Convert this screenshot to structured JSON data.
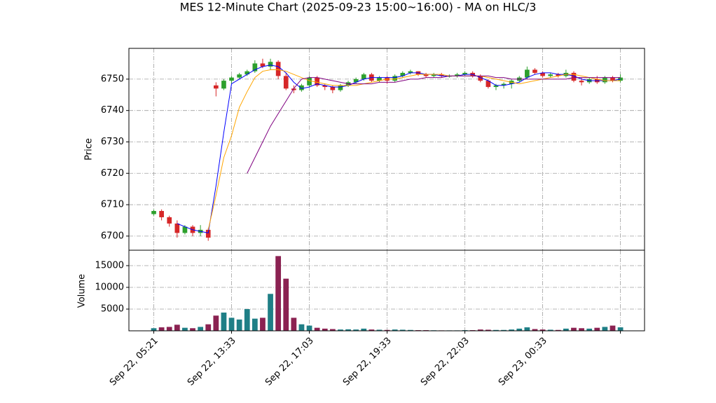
{
  "chart_data": {
    "type": "candlestick",
    "title": "MES 12-Minute Chart (2025-09-23 15:00~16:00) - MA on HLC/3",
    "ylabel": "Price",
    "volume_ylabel": "Volume",
    "open": [
      6707,
      6708,
      6706,
      6704,
      6701,
      6703,
      6701,
      6702,
      6748,
      6747,
      6749.5,
      6750.5,
      6751.5,
      6752.5,
      6755,
      6754,
      6755.5,
      6751,
      6747,
      6746.5,
      6748,
      6750.5,
      6748,
      6747.5,
      6746.5,
      6748,
      6749,
      6750,
      6751.5,
      6749.5,
      6750.5,
      6749.5,
      6751,
      6752,
      6752.5,
      6751.5,
      6751,
      6751.5,
      6751,
      6751,
      6751.5,
      6752,
      6751,
      6749.5,
      6747.5,
      6748,
      6748.5,
      6749.5,
      6750.5,
      6753,
      6752,
      6751,
      6751.5,
      6751,
      6752,
      6749.5,
      6749,
      6750,
      6749,
      6750.5,
      6749.5
    ],
    "high": [
      6708.5,
      6708.5,
      6706.5,
      6705,
      6703.5,
      6703.5,
      6703.5,
      6702.5,
      6749,
      6750,
      6751,
      6752,
      6753,
      6756,
      6756.5,
      6756.5,
      6756,
      6752,
      6748,
      6748.5,
      6751,
      6751,
      6748.5,
      6748,
      6748.5,
      6749.5,
      6750.5,
      6752,
      6752,
      6751,
      6751,
      6751.5,
      6752.5,
      6753,
      6752.5,
      6752,
      6752,
      6752,
      6751.5,
      6752,
      6752.5,
      6752.5,
      6751.5,
      6750,
      6748.5,
      6749,
      6750,
      6751,
      6754,
      6753.5,
      6752.5,
      6752,
      6752,
      6753,
      6752.5,
      6750.5,
      6750.5,
      6751,
      6751,
      6751,
      6751.5
    ],
    "low": [
      6706.5,
      6705,
      6703,
      6699.5,
      6700.5,
      6700,
      6700,
      6698.5,
      6744.5,
      6746.5,
      6748.5,
      6750,
      6751,
      6752,
      6753.5,
      6753,
      6750,
      6746.5,
      6745.5,
      6746,
      6747.5,
      6747.5,
      6746.5,
      6745.5,
      6746,
      6747.5,
      6748.5,
      6749.5,
      6749,
      6749,
      6748.5,
      6749,
      6750.5,
      6751.5,
      6751,
      6750.5,
      6750.5,
      6750.5,
      6750.5,
      6750.5,
      6751,
      6750.5,
      6749,
      6747,
      6746.5,
      6747,
      6747,
      6749,
      6750,
      6751.5,
      6750.5,
      6750.5,
      6750.5,
      6750.5,
      6749,
      6748,
      6748.5,
      6748.5,
      6748.5,
      6749,
      6749
    ],
    "close": [
      6708,
      6706,
      6704,
      6701,
      6703,
      6701,
      6702,
      6699.5,
      6747,
      6749.5,
      6750.5,
      6751.5,
      6752.5,
      6755,
      6754,
      6755.5,
      6751,
      6747,
      6746.5,
      6748,
      6750.5,
      6748,
      6747.5,
      6746.5,
      6748,
      6749,
      6750,
      6751.5,
      6749.5,
      6750.5,
      6749.5,
      6751,
      6752,
      6752.5,
      6751.5,
      6751,
      6751.5,
      6751,
      6751,
      6751.5,
      6752,
      6751,
      6749.5,
      6747.5,
      6748,
      6748.5,
      6749.5,
      6750.5,
      6753,
      6752,
      6751,
      6751.5,
      6751,
      6752,
      6749.5,
      6749,
      6750,
      6749,
      6750.5,
      6749.5,
      6750.5
    ],
    "volume": [
      600,
      800,
      900,
      1400,
      700,
      600,
      900,
      1500,
      3500,
      4200,
      3000,
      2600,
      5000,
      2800,
      3000,
      8500,
      17200,
      12000,
      3000,
      1500,
      1200,
      700,
      500,
      400,
      300,
      350,
      300,
      500,
      300,
      250,
      200,
      300,
      250,
      200,
      150,
      150,
      120,
      100,
      100,
      100,
      150,
      150,
      300,
      250,
      200,
      200,
      300,
      500,
      800,
      400,
      300,
      250,
      200,
      500,
      700,
      600,
      500,
      700,
      900,
      1200,
      800
    ],
    "up_color": "#2ca02c",
    "down_color": "#d62728",
    "volume_up_color": "#1f7f86",
    "volume_down_color": "#8b2252",
    "ma_series": [
      {
        "color": "#0000ff",
        "values": [
          null,
          null,
          null,
          6704,
          6703,
          6702,
          6701.5,
          6701,
          6716,
          6733,
          6748.5,
          6750,
          6751.5,
          6753,
          6754,
          6754.5,
          6754,
          6752,
          6749,
          6747,
          6747.5,
          6748.5,
          6748,
          6747.5,
          6747.5,
          6748,
          6749,
          6750,
          6750.5,
          6750.5,
          6750.5,
          6750.5,
          6751,
          6752,
          6752,
          6751.5,
          6751.5,
          6751,
          6751,
          6751,
          6751.5,
          6751.5,
          6750.5,
          6749.5,
          6748,
          6748,
          6748.5,
          6749,
          6750.5,
          6751.5,
          6752,
          6752,
          6751.5,
          6751.5,
          6751,
          6750,
          6749.5,
          6749.5,
          6749.5,
          6749.5,
          6750
        ]
      },
      {
        "color": "#ffa500",
        "values": [
          null,
          null,
          null,
          null,
          null,
          null,
          null,
          6702,
          6713,
          6725,
          6732,
          6741,
          6746,
          6750.5,
          6752.5,
          6753,
          6753,
          6752.5,
          6751.5,
          6750.5,
          6749.5,
          6749,
          6748.5,
          6748,
          6748,
          6748,
          6748,
          6748.5,
          6749,
          6749.5,
          6750,
          6750,
          6750.5,
          6751,
          6751.5,
          6751.5,
          6751.5,
          6751.5,
          6751,
          6751,
          6751,
          6751,
          6751,
          6750.5,
          6750,
          6749.5,
          6749,
          6748.5,
          6749,
          6749.5,
          6750,
          6750.5,
          6751,
          6751.5,
          6751.5,
          6751,
          6750.5,
          6750,
          6749.5,
          6749.5,
          6749.5
        ]
      },
      {
        "color": "#800080",
        "values": [
          null,
          null,
          null,
          null,
          null,
          null,
          null,
          null,
          null,
          null,
          null,
          null,
          6720,
          6725,
          6730,
          6735,
          6739,
          6743,
          6747,
          6750,
          6750.5,
          6750.5,
          6750,
          6749.5,
          6749,
          6748.5,
          6748.5,
          6748.5,
          6748.5,
          6749,
          6749,
          6749,
          6749.5,
          6750,
          6750,
          6750.5,
          6750.5,
          6750.5,
          6751,
          6751,
          6751,
          6751,
          6751,
          6751,
          6750.5,
          6750.5,
          6750,
          6750,
          6750,
          6750,
          6750,
          6750,
          6750,
          6750,
          6750.5,
          6750.5,
          6750.5,
          6750.5,
          6750.5,
          6750.5,
          6750.5
        ]
      }
    ],
    "xlim": [
      -3.2,
      63.1
    ],
    "xticks": [
      {
        "value": 0,
        "label": "Sep 22, 05:21"
      },
      {
        "value": 10,
        "label": "Sep 22, 13:33"
      },
      {
        "value": 20,
        "label": "Sep 22, 17:03"
      },
      {
        "value": 30,
        "label": "Sep 22, 19:33"
      },
      {
        "value": 40,
        "label": "Sep 22, 22:03"
      },
      {
        "value": 50,
        "label": "Sep 23, 00:33"
      },
      {
        "value": 60,
        "label": ""
      }
    ],
    "ylim": [
      6695.5,
      6759.8
    ],
    "yticks": [
      6700,
      6710,
      6720,
      6730,
      6740,
      6750
    ],
    "volume_ylim": [
      0,
      18550
    ],
    "volume_yticks": [
      5000,
      10000,
      15000
    ],
    "grid": true
  }
}
